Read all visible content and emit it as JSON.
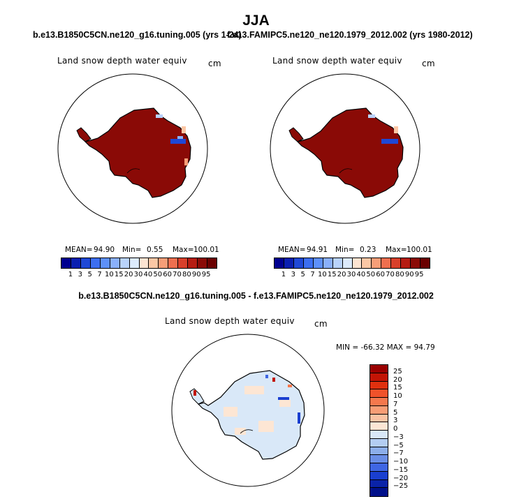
{
  "title": "JJA",
  "left_case": "b.e13.B1850C5CN.ne120_g16.tuning.005 (yrs 1-24)",
  "right_case": "f.e13.FAMIPC5.ne120_ne120.1979_2012.002 (yrs 1980-2012)",
  "diff_title": "b.e13.B1850C5CN.ne120_g16.tuning.005 - f.e13.FAMIPC5.ne120_ne120.1979_2012.002",
  "panels": {
    "left": {
      "variable": "Land snow depth water equiv",
      "units": "cm",
      "mean_label": "MEAN=",
      "mean": "94.90",
      "min_label": "Min=",
      "min": "0.55",
      "max_label": "Max=",
      "max": "100.01"
    },
    "right": {
      "variable": "Land snow depth water equiv",
      "units": "cm",
      "mean_label": "MEAN=",
      "mean": "94.91",
      "min_label": "Min=",
      "min": "0.23",
      "max_label": "Max=",
      "max": "100.01"
    },
    "diff": {
      "variable": "Land snow depth water equiv",
      "units": "cm",
      "minmax": "MIN = -66.32 MAX =  94.79"
    }
  },
  "abs_colorbar": {
    "levels": [
      "1",
      "3",
      "5",
      "7",
      "10",
      "15",
      "20",
      "30",
      "40",
      "50",
      "60",
      "70",
      "80",
      "90",
      "95"
    ],
    "colors": [
      "#00008f",
      "#0a1fb0",
      "#1f48d6",
      "#3c6ef0",
      "#5e90fa",
      "#8ab0fc",
      "#b9d3fc",
      "#dceafc",
      "#fde4d2",
      "#fcc7a5",
      "#f79e78",
      "#ef6f4f",
      "#d8402b",
      "#b51c12",
      "#8a0a06",
      "#6a0000"
    ]
  },
  "diff_colorbar": {
    "levels": [
      "25",
      "20",
      "15",
      "10",
      "7",
      "5",
      "3",
      "0",
      "−3",
      "−5",
      "−7",
      "−10",
      "−15",
      "−20",
      "−25"
    ],
    "colors": [
      "#9a0000",
      "#c21405",
      "#e0300e",
      "#f0522a",
      "#f5784d",
      "#f89d75",
      "#fbc3a3",
      "#fde6d4",
      "#d9e8f8",
      "#b3cdf2",
      "#8caeea",
      "#6a8ee6",
      "#3f66e3",
      "#1a3fd0",
      "#0a23a8",
      "#00108a"
    ]
  }
}
